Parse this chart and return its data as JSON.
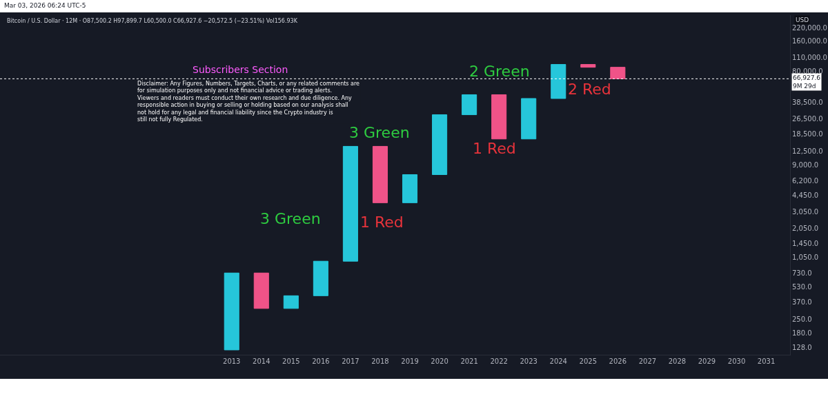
{
  "chart_data": {
    "type": "candlestick",
    "title": "Subscribers Section",
    "subtitle": "Disclaimer: Any Figures, Numbers, Targets, Charts, or any related comments are for simulation purposes only and not financial advice or trading alerts. Viewers and readers must conduct their own research and due diligence. Any responsible action in buying or selling or holding based on our analysis shall not hold for any legal and financial liability since the Crypto industry is still not fully Regulated.",
    "ylabel": "USD",
    "x": [
      2013,
      2014,
      2015,
      2016,
      2017,
      2018,
      2019,
      2020,
      2021,
      2022,
      2023,
      2024,
      2025,
      2026
    ],
    "ohlc": [
      [
        122,
        730,
        122,
        730
      ],
      [
        730,
        730,
        320,
        320
      ],
      [
        320,
        430,
        320,
        430
      ],
      [
        430,
        960,
        430,
        960
      ],
      [
        960,
        13900,
        960,
        13900
      ],
      [
        13900,
        13900,
        3740,
        3740
      ],
      [
        3740,
        7200,
        3740,
        7200
      ],
      [
        7200,
        29000,
        7200,
        29000
      ],
      [
        29000,
        46200,
        29000,
        46200
      ],
      [
        46200,
        46200,
        16500,
        16500
      ],
      [
        16500,
        42300,
        16500,
        42300
      ],
      [
        42300,
        93400,
        42300,
        93400
      ],
      [
        93400,
        93400,
        87500,
        87500
      ],
      [
        87500,
        87500,
        66927.6,
        66927.6
      ]
    ],
    "colors": [
      "#26c6da",
      "#ef5388",
      "#26c6da",
      "#26c6da",
      "#26c6da",
      "#ef5388",
      "#26c6da",
      "#26c6da",
      "#26c6da",
      "#ef5388",
      "#26c6da",
      "#26c6da",
      "#ef5388",
      "#ef5388"
    ],
    "log": "y",
    "xlim": [
      2005.2,
      2031.8
    ],
    "xticks": [
      2013,
      2014,
      2015,
      2016,
      2017,
      2018,
      2019,
      2020,
      2021,
      2022,
      2023,
      2024,
      2025,
      2026,
      2027,
      2028,
      2029,
      2030,
      2031
    ],
    "ylim": [
      109,
      294000
    ],
    "yticks": [
      {
        "value": 128,
        "label": "128.0"
      },
      {
        "value": 180,
        "label": "180.0"
      },
      {
        "value": 250,
        "label": "250.0"
      },
      {
        "value": 370,
        "label": "370.0"
      },
      {
        "value": 530,
        "label": "530.0"
      },
      {
        "value": 730,
        "label": "730.0"
      },
      {
        "value": 1050,
        "label": "1,050.0"
      },
      {
        "value": 1450,
        "label": "1,450.0"
      },
      {
        "value": 2050,
        "label": "2,050.0"
      },
      {
        "value": 3050,
        "label": "3,050.0"
      },
      {
        "value": 4450,
        "label": "4,450.0"
      },
      {
        "value": 6200,
        "label": "6,200.0"
      },
      {
        "value": 9000,
        "label": "9,000.0"
      },
      {
        "value": 12500,
        "label": "12,500.0"
      },
      {
        "value": 18500,
        "label": "18,500.0"
      },
      {
        "value": 26500,
        "label": "26,500.0"
      },
      {
        "value": 38500,
        "label": "38,500.0"
      },
      {
        "value": 80000,
        "label": "80,000.0"
      },
      {
        "value": 110000,
        "label": "110,000.0"
      },
      {
        "value": 160000,
        "label": "160,000.0"
      },
      {
        "value": 220000,
        "label": "220,000.0"
      }
    ],
    "ref_lines": [
      {
        "axis": "y",
        "value": 66927.6,
        "label": "66,927.6\n9M 29d",
        "color": "#ffffff",
        "line_style": "dotted"
      }
    ],
    "annotations": [
      "Mar 03, 2026 06:24 UTC-5",
      "Bitcoin / U.S. Dollar · 12M · O87,500.2 H97,899.7 L60,500.0 C66,927.6 −20,572.5 (−23.51%) Vol156.93K",
      "3 Green",
      "3 Green",
      "1 Red",
      "2 Green",
      "1 Red",
      "2 Red"
    ]
  }
}
